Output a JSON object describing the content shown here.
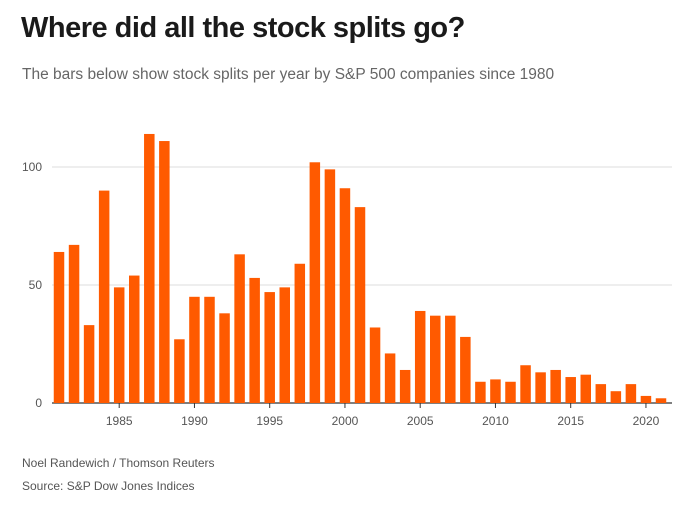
{
  "title": "Where did all the stock splits go?",
  "subtitle": "The bars below show stock splits per year by S&P 500 companies since 1980",
  "credit": "Noel Randewich / Thomson Reuters",
  "source": "Source: S&P Dow Jones Indices",
  "colors": {
    "bar": "#ff5a00",
    "grid": "#dddddd",
    "axis": "#333333"
  },
  "chart_data": {
    "type": "bar",
    "x": [
      1981,
      1982,
      1983,
      1984,
      1985,
      1986,
      1987,
      1988,
      1989,
      1990,
      1991,
      1992,
      1993,
      1994,
      1995,
      1996,
      1997,
      1998,
      1999,
      2000,
      2001,
      2002,
      2003,
      2004,
      2005,
      2006,
      2007,
      2008,
      2009,
      2010,
      2011,
      2012,
      2013,
      2014,
      2015,
      2016,
      2017,
      2018,
      2019,
      2020,
      2021
    ],
    "values": [
      64,
      67,
      33,
      90,
      49,
      54,
      114,
      111,
      27,
      45,
      45,
      38,
      63,
      53,
      47,
      49,
      59,
      102,
      99,
      91,
      83,
      32,
      21,
      14,
      39,
      37,
      37,
      28,
      9,
      10,
      9,
      16,
      13,
      14,
      11,
      12,
      8,
      5,
      8,
      3,
      2
    ],
    "xticks": [
      1985,
      1990,
      1995,
      2000,
      2005,
      2010,
      2015,
      2020
    ],
    "yticks": [
      0,
      50,
      100
    ],
    "ylim": [
      0,
      120
    ],
    "xlabel": "",
    "ylabel": "",
    "grid": true
  }
}
